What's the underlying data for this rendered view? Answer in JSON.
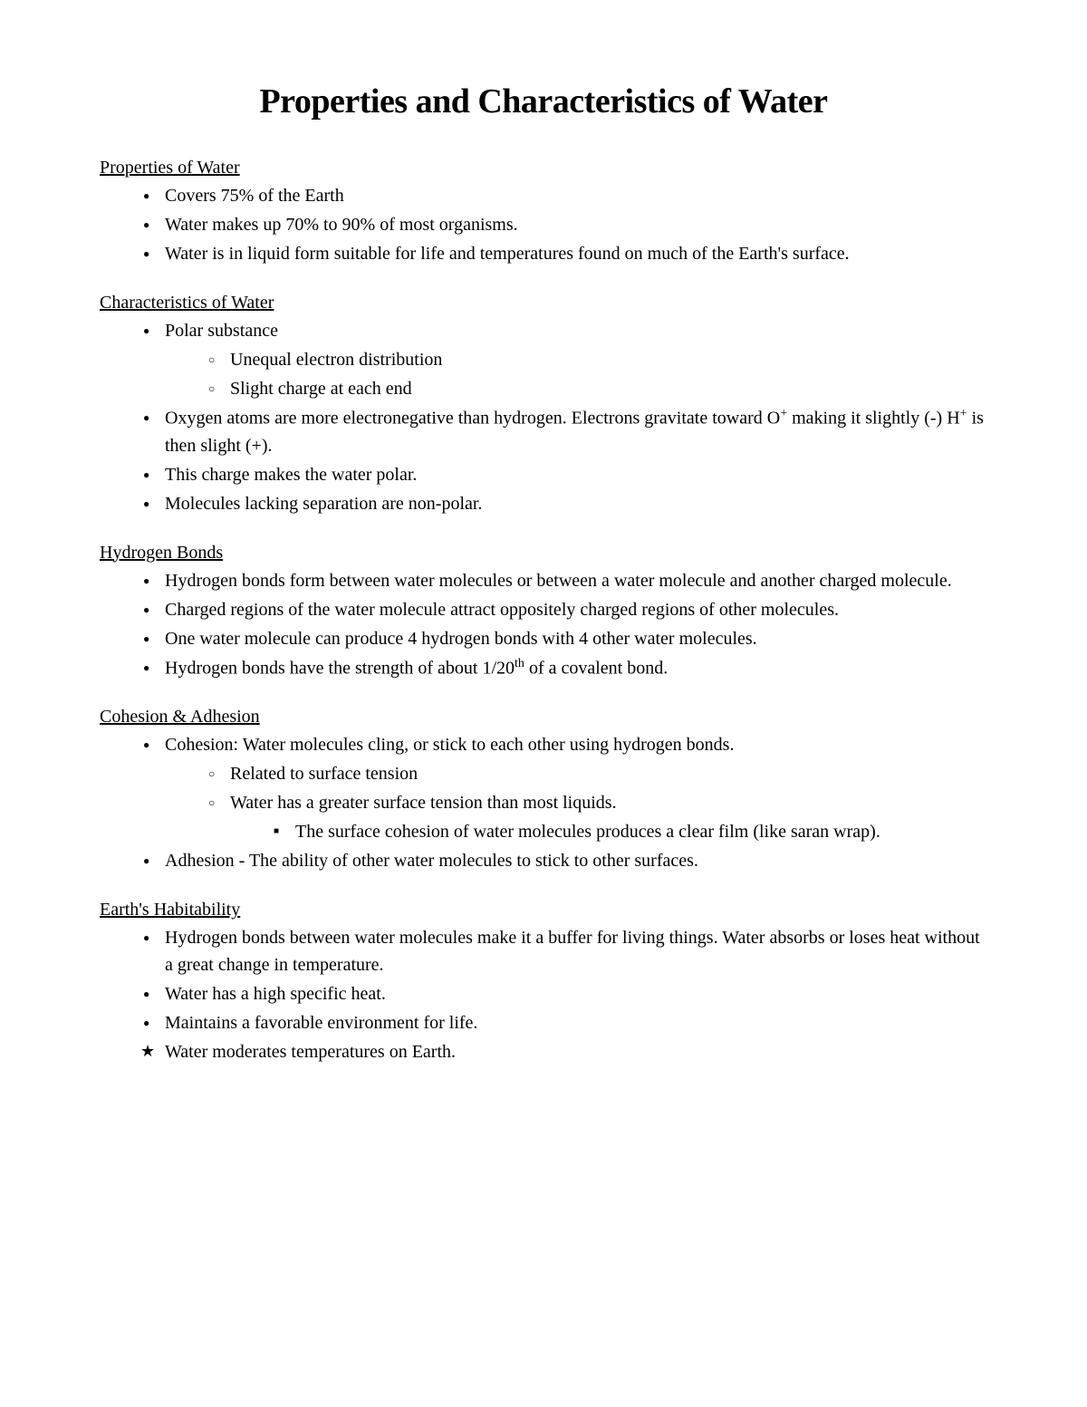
{
  "title": "Properties and Characteristics of Water",
  "sections": [
    {
      "heading": "Properties of Water",
      "items": [
        {
          "text": "Covers 75% of the Earth"
        },
        {
          "text": "Water makes up 70% to 90% of most organisms."
        },
        {
          "text": "Water is in liquid form suitable for life and temperatures found on much of the Earth's surface."
        }
      ]
    },
    {
      "heading": "Characteristics of Water",
      "items": [
        {
          "text": "Polar substance",
          "sub": [
            {
              "text": "Unequal electron distribution"
            },
            {
              "text": "Slight charge at each end"
            }
          ]
        },
        {
          "html": "Oxygen atoms are more electronegative than hydrogen. Electrons gravitate toward O<sup>+</sup> making it slightly (-) H<sup>+</sup> is then slight (+)."
        },
        {
          "text": "This charge makes the water polar."
        },
        {
          "text": "Molecules lacking separation are non-polar."
        }
      ]
    },
    {
      "heading": "Hydrogen Bonds",
      "items": [
        {
          "text": "Hydrogen bonds form between water molecules or between a water molecule and another charged molecule."
        },
        {
          "text": "Charged regions of the water molecule attract oppositely charged regions of other molecules."
        },
        {
          "text": "One water molecule can produce 4 hydrogen bonds with 4 other water molecules."
        },
        {
          "html": "Hydrogen bonds have the strength of about 1/20<sup>th</sup> of a covalent bond."
        }
      ]
    },
    {
      "heading": "Cohesion & Adhesion",
      "items": [
        {
          "text": "Cohesion: Water molecules cling, or stick to each other using hydrogen bonds.",
          "sub": [
            {
              "text": "Related to surface tension"
            },
            {
              "text": "Water has a greater surface tension than most liquids.",
              "sub": [
                {
                  "text": "The surface cohesion of water molecules produces a clear film (like saran wrap)."
                }
              ]
            }
          ]
        },
        {
          "text": "Adhesion - The ability of other water molecules to stick to other surfaces."
        }
      ]
    },
    {
      "heading": "Earth's Habitability",
      "items": [
        {
          "text": "Hydrogen bonds between water molecules make it a buffer for living things. Water absorbs or loses heat without a great change in temperature."
        },
        {
          "text": "Water has a high specific heat."
        },
        {
          "text": "Maintains a favorable environment for life."
        },
        {
          "text": "Water moderates temperatures on Earth.",
          "marker": "star"
        }
      ]
    }
  ]
}
